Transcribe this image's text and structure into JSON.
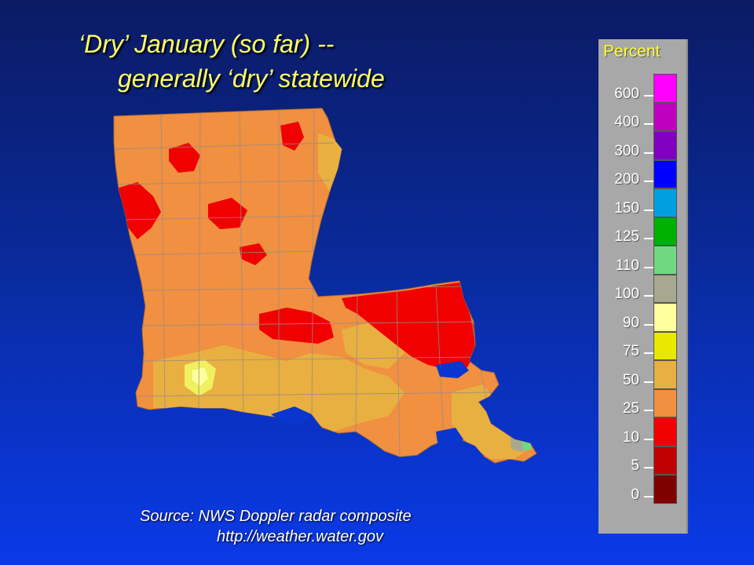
{
  "title": {
    "line1": "‘Dry’ January (so far) --",
    "line2": "generally ‘dry’ statewide"
  },
  "legend": {
    "title": "Percent",
    "bins": [
      {
        "label": "600",
        "color": "#ff00ff"
      },
      {
        "label": "400",
        "color": "#c000c0"
      },
      {
        "label": "300",
        "color": "#8000c0"
      },
      {
        "label": "200",
        "color": "#0000ff"
      },
      {
        "label": "150",
        "color": "#00a0e0"
      },
      {
        "label": "125",
        "color": "#00b000"
      },
      {
        "label": "110",
        "color": "#70d880"
      },
      {
        "label": "100",
        "color": "#a8a890"
      },
      {
        "label": "90",
        "color": "#ffffa0"
      },
      {
        "label": "75",
        "color": "#e8e800"
      },
      {
        "label": "50",
        "color": "#e8b040"
      },
      {
        "label": "25",
        "color": "#f09040"
      },
      {
        "label": "10",
        "color": "#f00000"
      },
      {
        "label": "5",
        "color": "#c00000"
      },
      {
        "label": "0",
        "color": "#800000"
      }
    ]
  },
  "source": {
    "line1": "Source: NWS Doppler radar composite",
    "line2": "http://weather.water.gov"
  }
}
